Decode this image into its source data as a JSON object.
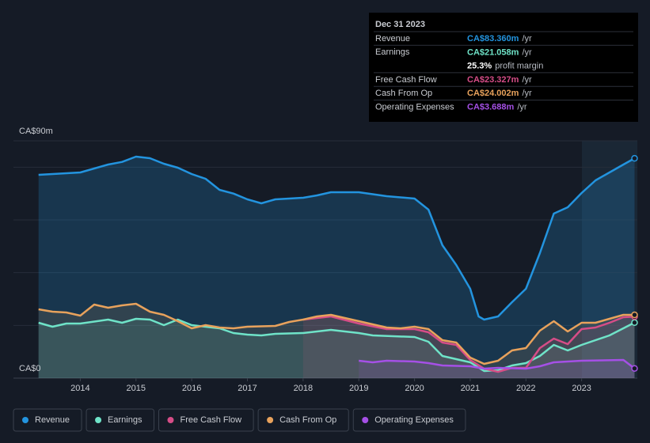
{
  "chart_data": {
    "type": "area",
    "xlim": [
      2012.8,
      2024
    ],
    "xticks": [
      2014,
      2015,
      2016,
      2017,
      2018,
      2019,
      2020,
      2021,
      2022,
      2023
    ],
    "ylim": [
      0,
      90
    ],
    "yticks": [
      {
        "value": 0,
        "label": "CA$0"
      },
      {
        "value": 20,
        "label": null
      },
      {
        "value": 40,
        "label": null
      },
      {
        "value": 60,
        "label": null
      },
      {
        "value": 80,
        "label": null
      },
      {
        "value": 90,
        "label": "CA$90m"
      }
    ],
    "grid": true,
    "legend": "bottom",
    "series": [
      {
        "name": "Revenue",
        "color": "#2394df",
        "x": [
          2013.25,
          2014,
          2014.5,
          2014.75,
          2015,
          2015.25,
          2015.5,
          2015.75,
          2016,
          2016.25,
          2016.5,
          2016.75,
          2017,
          2017.25,
          2017.5,
          2017.75,
          2018,
          2018.25,
          2018.5,
          2019,
          2019.5,
          2020,
          2020.25,
          2020.5,
          2020.75,
          2021,
          2021.15,
          2021.25,
          2021.5,
          2021.75,
          2022,
          2022.25,
          2022.5,
          2022.75,
          2023,
          2023.25,
          2023.5,
          2023.75,
          2023.95
        ],
        "values": [
          77.1,
          78,
          81,
          82,
          84,
          83.4,
          81.3,
          79.8,
          77.4,
          75.6,
          71.4,
          70,
          67.8,
          66.3,
          67.8,
          68.1,
          68.4,
          69.3,
          70.5,
          70.5,
          69,
          68.1,
          63.9,
          50.4,
          42.9,
          33.9,
          23.4,
          22.2,
          23.4,
          28.8,
          33.9,
          47.4,
          62.4,
          64.8,
          70.2,
          75,
          78,
          81,
          83.36
        ]
      },
      {
        "name": "Earnings",
        "color": "#6fe3c8",
        "x": [
          2013.25,
          2013.5,
          2013.75,
          2014,
          2014.5,
          2014.75,
          2015,
          2015.25,
          2015.5,
          2015.75,
          2016,
          2016.5,
          2016.75,
          2017,
          2017.25,
          2017.5,
          2018,
          2018.5,
          2019,
          2019.25,
          2020,
          2020.25,
          2020.5,
          2021,
          2021.25,
          2021.5,
          2021.75,
          2022,
          2022.25,
          2022.5,
          2022.75,
          2023,
          2023.5,
          2023.95
        ],
        "values": [
          21,
          19.5,
          20.7,
          20.7,
          22.2,
          21,
          22.5,
          22.2,
          20.1,
          22.2,
          20.1,
          18.9,
          17.1,
          16.5,
          16.2,
          16.8,
          17.1,
          18.3,
          17.1,
          16.2,
          15.6,
          13.8,
          8.4,
          6,
          2.7,
          3,
          4.8,
          5.7,
          8.4,
          12.6,
          10.5,
          12.6,
          16.2,
          21.058
        ]
      },
      {
        "name": "Free Cash Flow",
        "color": "#d64d87",
        "x": [
          2018,
          2018.5,
          2019,
          2019.5,
          2020,
          2020.25,
          2020.5,
          2020.75,
          2021,
          2021.25,
          2021.5,
          2021.75,
          2022,
          2022.25,
          2022.5,
          2022.75,
          2023,
          2023.25,
          2023.5,
          2023.75,
          2023.95
        ],
        "values": [
          22.2,
          23.4,
          20.7,
          18.6,
          18.6,
          17.4,
          13.5,
          12.6,
          6.9,
          3.6,
          2.4,
          3.9,
          3.9,
          11.4,
          15,
          12.9,
          18.6,
          19.2,
          21,
          23.1,
          23.327
        ]
      },
      {
        "name": "Cash From Op",
        "color": "#e8a25c",
        "x": [
          2013.25,
          2013.5,
          2013.75,
          2014,
          2014.25,
          2014.5,
          2014.75,
          2015,
          2015.25,
          2015.5,
          2015.75,
          2016,
          2016.25,
          2016.5,
          2016.75,
          2017,
          2017.5,
          2017.75,
          2018,
          2018.25,
          2018.5,
          2019,
          2019.5,
          2019.75,
          2020,
          2020.25,
          2020.5,
          2020.75,
          2021,
          2021.25,
          2021.5,
          2021.75,
          2022,
          2022.25,
          2022.5,
          2022.75,
          2023,
          2023.25,
          2023.5,
          2023.75,
          2023.95
        ],
        "values": [
          26.1,
          25.2,
          24.9,
          23.7,
          27.9,
          26.7,
          27.6,
          28.2,
          25.2,
          24,
          21.6,
          18.9,
          20.1,
          19.2,
          18.9,
          19.5,
          19.8,
          21.3,
          22.2,
          23.4,
          24,
          21.6,
          19.2,
          18.9,
          19.5,
          18.6,
          14.4,
          13.5,
          7.8,
          5.4,
          6.6,
          10.5,
          11.4,
          18,
          21.6,
          17.7,
          21,
          21,
          22.5,
          24,
          24.002
        ]
      },
      {
        "name": "Operating Expenses",
        "color": "#a550e6",
        "x": [
          2019,
          2019.25,
          2019.5,
          2020,
          2020.25,
          2020.5,
          2021,
          2021.25,
          2021.5,
          2022,
          2022.25,
          2022.5,
          2023,
          2023.75,
          2023.95
        ],
        "values": [
          6.6,
          6,
          6.6,
          6.3,
          5.7,
          4.8,
          4.5,
          3.6,
          3.9,
          3.6,
          4.5,
          6,
          6.6,
          6.9,
          3.688
        ]
      }
    ],
    "tooltip": {
      "date": "Dec 31 2023",
      "rows": [
        {
          "label": "Revenue",
          "value": "CA$83.360m",
          "unit": "/yr"
        },
        {
          "label": "Earnings",
          "value": "CA$21.058m",
          "unit": "/yr"
        },
        {
          "label": "Free Cash Flow",
          "value": "CA$23.327m",
          "unit": "/yr"
        },
        {
          "label": "Cash From Op",
          "value": "CA$24.002m",
          "unit": "/yr"
        },
        {
          "label": "Operating Expenses",
          "value": "CA$3.688m",
          "unit": "/yr"
        }
      ],
      "margin": {
        "value": "25.3%",
        "label": "profit margin"
      }
    }
  }
}
